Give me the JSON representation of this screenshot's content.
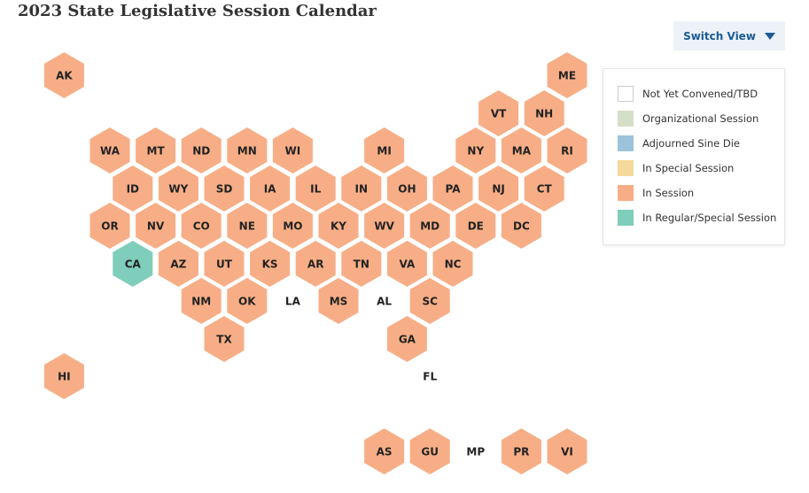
{
  "header": {
    "title": "2023 State Legislative Session Calendar"
  },
  "switch_view": {
    "label": "Switch View"
  },
  "legend": [
    {
      "label": "Not Yet Convened/TBD",
      "color": "#ffffff"
    },
    {
      "label": "Organizational Session",
      "color": "#d3e0c7"
    },
    {
      "label": "Adjourned Sine Die",
      "color": "#9cc3da"
    },
    {
      "label": "In Special Session",
      "color": "#f5d89b"
    },
    {
      "label": "In Session",
      "color": "#f7ae86"
    },
    {
      "label": "In Regular/Special Session",
      "color": "#7fcdbb"
    }
  ],
  "hexes": [
    {
      "label": "AK",
      "color": "#f7ae86"
    },
    {
      "label": "ME",
      "color": "#f7ae86"
    },
    {
      "label": "VT",
      "color": "#f7ae86"
    },
    {
      "label": "NH",
      "color": "#f7ae86"
    },
    {
      "label": "WA",
      "color": "#f7ae86"
    },
    {
      "label": "MT",
      "color": "#f7ae86"
    },
    {
      "label": "ND",
      "color": "#f7ae86"
    },
    {
      "label": "MN",
      "color": "#f7ae86"
    },
    {
      "label": "WI",
      "color": "#f7ae86"
    },
    {
      "label": "MI",
      "color": "#f7ae86"
    },
    {
      "label": "NY",
      "color": "#f7ae86"
    },
    {
      "label": "MA",
      "color": "#f7ae86"
    },
    {
      "label": "RI",
      "color": "#f7ae86"
    },
    {
      "label": "ID",
      "color": "#f7ae86"
    },
    {
      "label": "WY",
      "color": "#f7ae86"
    },
    {
      "label": "SD",
      "color": "#f7ae86"
    },
    {
      "label": "IA",
      "color": "#f7ae86"
    },
    {
      "label": "IL",
      "color": "#f7ae86"
    },
    {
      "label": "IN",
      "color": "#f7ae86"
    },
    {
      "label": "OH",
      "color": "#f7ae86"
    },
    {
      "label": "PA",
      "color": "#f7ae86"
    },
    {
      "label": "NJ",
      "color": "#f7ae86"
    },
    {
      "label": "CT",
      "color": "#f7ae86"
    },
    {
      "label": "OR",
      "color": "#f7ae86"
    },
    {
      "label": "NV",
      "color": "#f7ae86"
    },
    {
      "label": "CO",
      "color": "#f7ae86"
    },
    {
      "label": "NE",
      "color": "#f7ae86"
    },
    {
      "label": "MO",
      "color": "#f7ae86"
    },
    {
      "label": "KY",
      "color": "#f7ae86"
    },
    {
      "label": "WV",
      "color": "#f7ae86"
    },
    {
      "label": "MD",
      "color": "#f7ae86"
    },
    {
      "label": "DE",
      "color": "#f7ae86"
    },
    {
      "label": "DC",
      "color": "#f7ae86"
    },
    {
      "label": "CA",
      "color": "#7fcdbb"
    },
    {
      "label": "AZ",
      "color": "#f7ae86"
    },
    {
      "label": "UT",
      "color": "#f7ae86"
    },
    {
      "label": "KS",
      "color": "#f7ae86"
    },
    {
      "label": "AR",
      "color": "#f7ae86"
    },
    {
      "label": "TN",
      "color": "#f7ae86"
    },
    {
      "label": "VA",
      "color": "#f7ae86"
    },
    {
      "label": "NC",
      "color": "#f7ae86"
    },
    {
      "label": "NM",
      "color": "#f7ae86"
    },
    {
      "label": "OK",
      "color": "#f7ae86"
    },
    {
      "label": "LA",
      "color": "#ffffff"
    },
    {
      "label": "MS",
      "color": "#f7ae86"
    },
    {
      "label": "AL",
      "color": "#ffffff"
    },
    {
      "label": "SC",
      "color": "#f7ae86"
    },
    {
      "label": "TX",
      "color": "#f7ae86"
    },
    {
      "label": "GA",
      "color": "#f7ae86"
    },
    {
      "label": "HI",
      "color": "#f7ae86"
    },
    {
      "label": "FL",
      "color": "#ffffff"
    },
    {
      "label": "AS",
      "color": "#f7ae86"
    },
    {
      "label": "GU",
      "color": "#f7ae86"
    },
    {
      "label": "MP",
      "color": "#ffffff"
    },
    {
      "label": "PR",
      "color": "#f7ae86"
    },
    {
      "label": "VI",
      "color": "#f7ae86"
    }
  ]
}
